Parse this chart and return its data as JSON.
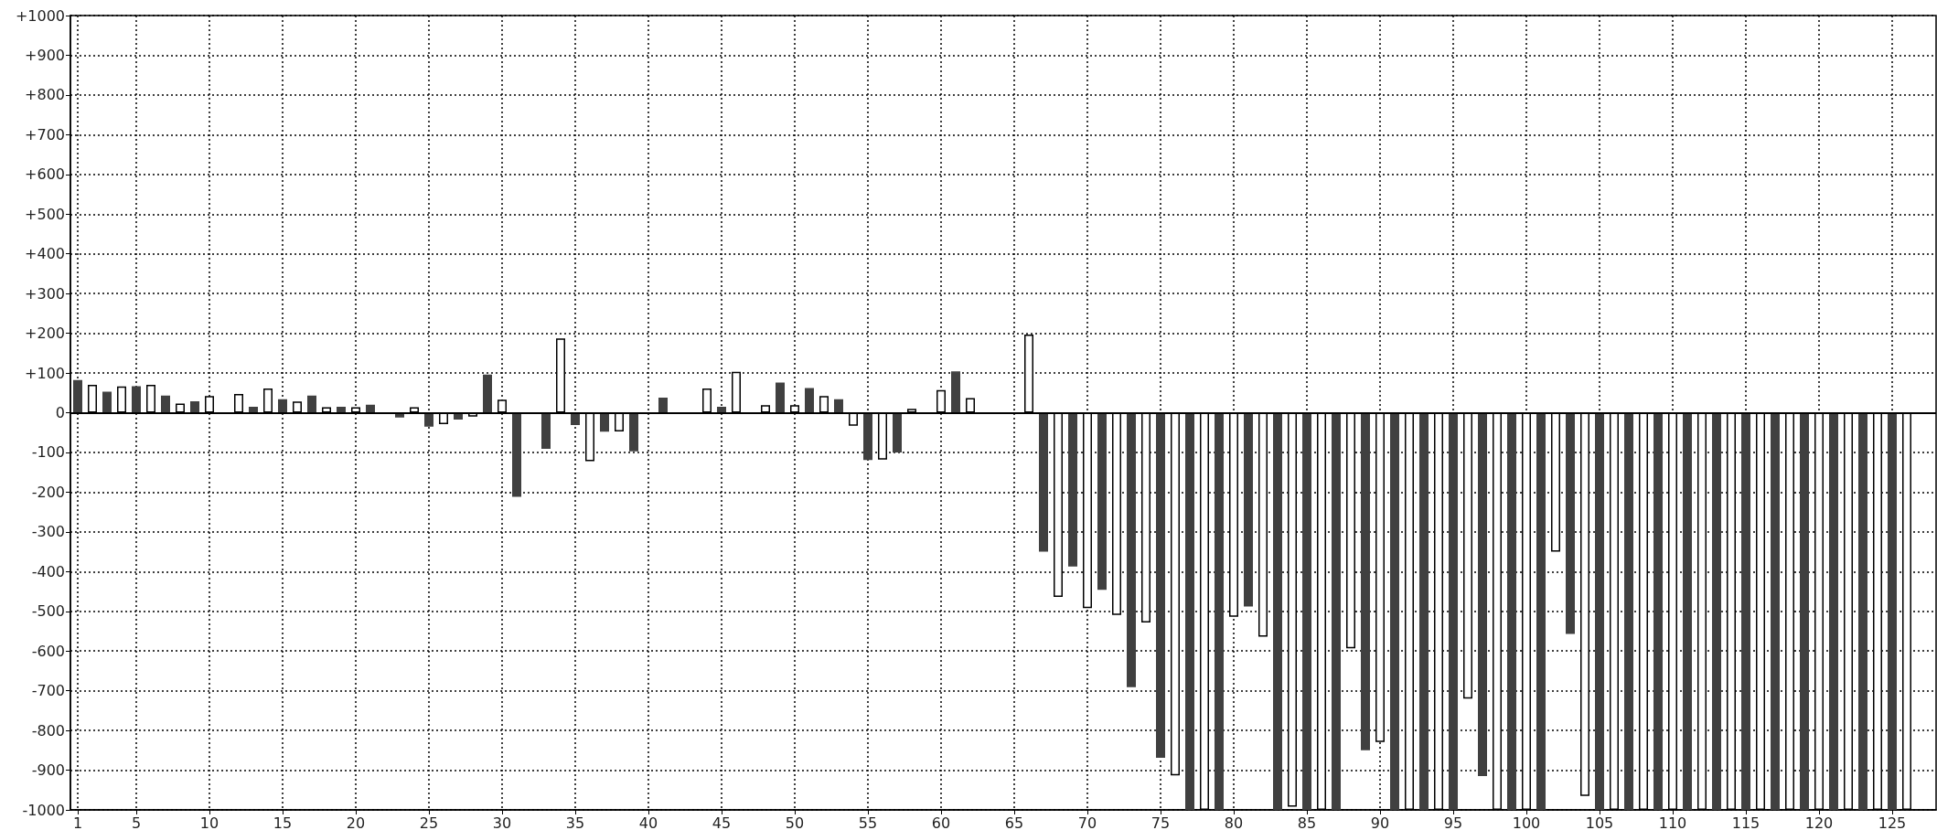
{
  "chart_data": {
    "type": "bar",
    "x": [
      1,
      2,
      3,
      4,
      5,
      6,
      7,
      8,
      9,
      10,
      11,
      12,
      13,
      14,
      15,
      16,
      17,
      18,
      19,
      20,
      21,
      22,
      23,
      24,
      25,
      26,
      27,
      28,
      29,
      30,
      31,
      32,
      33,
      34,
      35,
      36,
      37,
      38,
      39,
      40,
      41,
      42,
      43,
      44,
      45,
      46,
      47,
      48,
      49,
      50,
      51,
      52,
      53,
      54,
      55,
      56,
      57,
      58,
      59,
      60,
      61,
      62,
      63,
      64,
      65,
      66,
      67,
      68,
      69,
      70,
      71,
      72,
      73,
      74,
      75,
      76,
      77,
      78,
      79,
      80,
      81,
      82,
      83,
      84,
      85,
      86,
      87,
      88,
      89,
      90,
      91,
      92,
      93,
      94,
      95,
      96,
      97,
      98,
      99,
      100,
      101,
      102,
      103,
      104,
      105,
      106,
      107,
      108,
      109,
      110,
      111,
      112,
      113,
      114,
      115,
      116,
      117,
      118,
      119,
      120,
      121,
      122,
      123,
      124,
      125,
      126
    ],
    "values": [
      82,
      70,
      53,
      66,
      67,
      70,
      43,
      23,
      29,
      42,
      null,
      47,
      15,
      61,
      34,
      28,
      43,
      14,
      15,
      14,
      20,
      null,
      -12,
      14,
      -35,
      -29,
      -17,
      -10,
      96,
      33,
      -212,
      null,
      -91,
      187,
      -31,
      -122,
      -48,
      -47,
      -97,
      null,
      38,
      null,
      null,
      61,
      15,
      103,
      null,
      19,
      76,
      19,
      62,
      42,
      34,
      -33,
      -119,
      -118,
      -100,
      10,
      null,
      57,
      104,
      37,
      null,
      null,
      null,
      197,
      -350,
      -464,
      -387,
      -492,
      -446,
      -509,
      -691,
      -528,
      -869,
      -913,
      -1000,
      -1000,
      -1000,
      -514,
      -488,
      -564,
      -1000,
      -992,
      -1000,
      -1000,
      -1000,
      -593,
      -850,
      -829,
      -1000,
      -1000,
      -1000,
      -1000,
      -1000,
      -720,
      -915,
      -1000,
      -1000,
      -1000,
      -1000,
      -350,
      -557,
      -965,
      -1000,
      -1000,
      -1000,
      -1000,
      -1000,
      -1000,
      -1000,
      -1000,
      -1000,
      -1000,
      -1000,
      -1000,
      -1000,
      -1000,
      -1000,
      -1000,
      -1000,
      -1000,
      -1000,
      -1000,
      -1000,
      -1000
    ],
    "colors": [
      "#404040",
      "#ffffff",
      "#404040",
      "#ffffff",
      "#404040",
      "#ffffff",
      "#404040",
      "#ffffff",
      "#404040",
      "#ffffff",
      "#404040",
      "#ffffff",
      "#404040",
      "#ffffff",
      "#404040",
      "#ffffff",
      "#404040",
      "#ffffff",
      "#404040",
      "#ffffff",
      "#404040",
      "#ffffff",
      "#404040",
      "#ffffff",
      "#404040",
      "#ffffff",
      "#404040",
      "#ffffff",
      "#404040",
      "#ffffff",
      "#404040",
      "#ffffff",
      "#404040",
      "#ffffff",
      "#404040",
      "#ffffff",
      "#404040",
      "#ffffff",
      "#404040",
      "#ffffff",
      "#404040",
      "#ffffff",
      "#404040",
      "#ffffff",
      "#404040",
      "#ffffff",
      "#404040",
      "#ffffff",
      "#404040",
      "#ffffff",
      "#404040",
      "#ffffff",
      "#404040",
      "#ffffff",
      "#404040",
      "#ffffff",
      "#404040",
      "#ffffff",
      "#404040",
      "#ffffff",
      "#404040",
      "#ffffff",
      "#404040",
      "#ffffff",
      "#404040",
      "#ffffff",
      "#404040",
      "#ffffff",
      "#404040",
      "#ffffff",
      "#404040",
      "#ffffff",
      "#404040",
      "#ffffff",
      "#404040",
      "#ffffff",
      "#404040",
      "#ffffff",
      "#404040",
      "#ffffff",
      "#404040",
      "#ffffff",
      "#404040",
      "#ffffff",
      "#404040",
      "#ffffff",
      "#404040",
      "#ffffff",
      "#404040",
      "#ffffff",
      "#404040",
      "#ffffff",
      "#404040",
      "#ffffff",
      "#404040",
      "#ffffff",
      "#404040",
      "#ffffff",
      "#404040",
      "#ffffff",
      "#404040",
      "#ffffff",
      "#404040",
      "#ffffff",
      "#404040",
      "#ffffff",
      "#404040",
      "#ffffff",
      "#404040",
      "#ffffff",
      "#404040",
      "#ffffff",
      "#404040",
      "#ffffff",
      "#404040",
      "#ffffff",
      "#404040",
      "#ffffff",
      "#404040",
      "#ffffff",
      "#404040",
      "#ffffff",
      "#404040",
      "#ffffff",
      "#404040",
      "#ffffff"
    ],
    "xlim": [
      0.5,
      128
    ],
    "xticks": [
      1,
      5,
      10,
      15,
      20,
      25,
      30,
      35,
      40,
      45,
      50,
      55,
      60,
      65,
      70,
      75,
      80,
      85,
      90,
      95,
      100,
      105,
      110,
      115,
      120,
      125
    ],
    "ylim": [
      -1000,
      1000
    ],
    "yticks": [
      {
        "value": 1000,
        "label": "+1000"
      },
      {
        "value": 900,
        "label": "+900"
      },
      {
        "value": 800,
        "label": "+800"
      },
      {
        "value": 700,
        "label": "+700"
      },
      {
        "value": 600,
        "label": "+600"
      },
      {
        "value": 500,
        "label": "+500"
      },
      {
        "value": 400,
        "label": "+400"
      },
      {
        "value": 300,
        "label": "+300"
      },
      {
        "value": 200,
        "label": "+200"
      },
      {
        "value": 100,
        "label": "+100"
      },
      0,
      -100,
      -200,
      -300,
      -400,
      -500,
      -600,
      -700,
      -800,
      -900,
      -1000
    ],
    "ref_lines": [
      {
        "axis": "y",
        "value": 0,
        "color": "#000000"
      }
    ],
    "grid": true
  }
}
